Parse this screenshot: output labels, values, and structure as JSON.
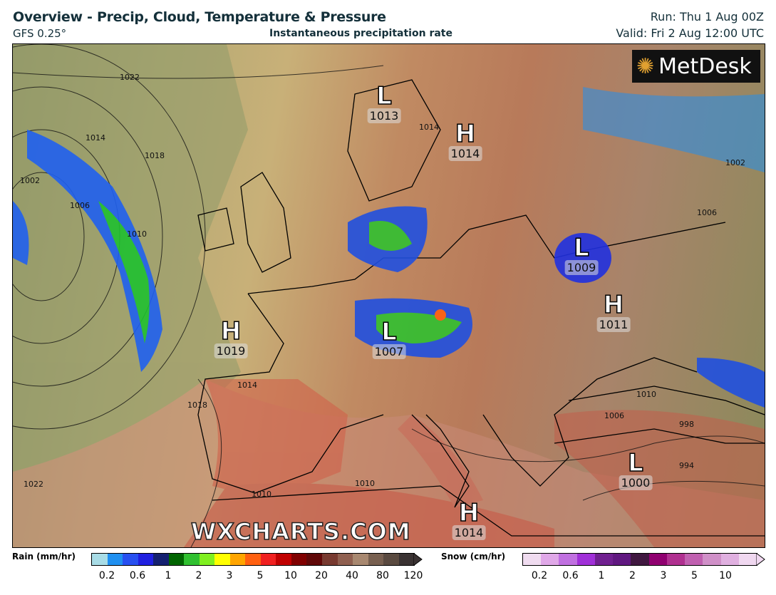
{
  "header": {
    "title": "Overview - Precip, Cloud, Temperature & Pressure",
    "model": "GFS 0.25°",
    "subtitle": "Instantaneous precipitation rate",
    "run": "Run: Thu 1 Aug 00Z",
    "valid": "Valid: Fri 2 Aug 12:00 UTC"
  },
  "branding": {
    "logo": "MetDesk",
    "watermark": "WXCHARTS.COM"
  },
  "pressure_centers": [
    {
      "type": "L",
      "value": "1013"
    },
    {
      "type": "H",
      "value": "1014"
    },
    {
      "type": "L",
      "value": "1009"
    },
    {
      "type": "H",
      "value": "1011"
    },
    {
      "type": "H",
      "value": "1019"
    },
    {
      "type": "L",
      "value": "1007"
    },
    {
      "type": "L",
      "value": "1000"
    },
    {
      "type": "H",
      "value": "1014"
    }
  ],
  "isobar_labels": [
    "1022",
    "1014",
    "1018",
    "1002",
    "1006",
    "1010",
    "1014",
    "1018",
    "1014",
    "1010",
    "1006",
    "998",
    "994",
    "1022",
    "1010",
    "1010",
    "1006",
    "1002"
  ],
  "legend": {
    "rain": {
      "label": "Rain (mm/hr)",
      "ticks": [
        "0.2",
        "0.6",
        "1",
        "2",
        "3",
        "5",
        "10",
        "20",
        "40",
        "80",
        "120"
      ],
      "colors": [
        "#a8dce6",
        "#2090f0",
        "#2850f0",
        "#2020e0",
        "#142070",
        "#006400",
        "#30c030",
        "#80f020",
        "#ffff00",
        "#ffa500",
        "#ff6010",
        "#f02020",
        "#c00000",
        "#800000",
        "#600808",
        "#783a30",
        "#906050",
        "#a88870",
        "#786050",
        "#5a4a40",
        "#3a3232"
      ]
    },
    "snow": {
      "label": "Snow (cm/hr)",
      "ticks": [
        "0.2",
        "0.6",
        "1",
        "2",
        "3",
        "5",
        "10"
      ],
      "colors": [
        "#f0dcf0",
        "#e0a8e8",
        "#c070e0",
        "#a030d8",
        "#702090",
        "#601880",
        "#401840",
        "#900070",
        "#b03090",
        "#c060b0",
        "#d090c8",
        "#e0b0e0",
        "#f0d8f0"
      ]
    }
  }
}
